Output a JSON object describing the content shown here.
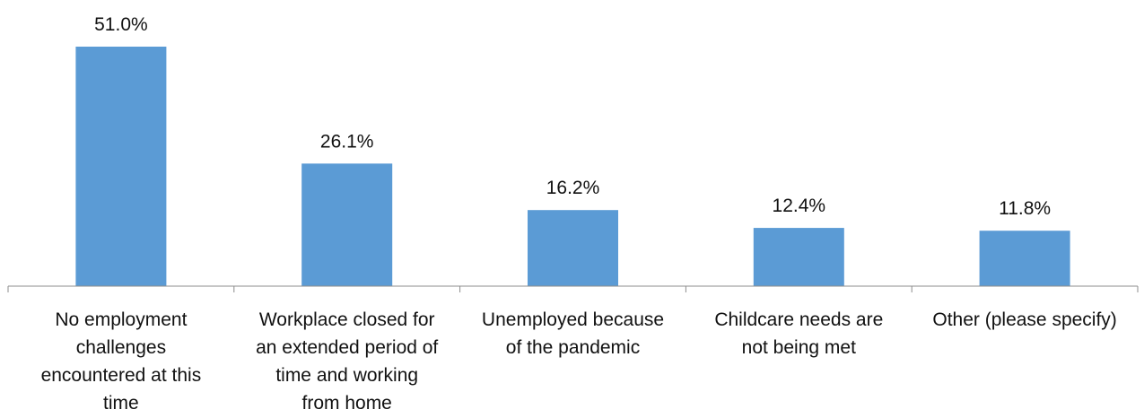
{
  "chart_data": {
    "type": "bar",
    "categories": [
      "No employment challenges encountered at this time",
      "Workplace closed for an extended period of time and working from home",
      "Unemployed because of the pandemic",
      "Childcare needs are not being met",
      "Other (please specify)"
    ],
    "category_lines": [
      [
        "No employment",
        "challenges",
        "encountered at this",
        "time"
      ],
      [
        "Workplace closed for",
        "an extended period of",
        "time and working",
        "from home"
      ],
      [
        "Unemployed because",
        "of the pandemic"
      ],
      [
        "Childcare needs are",
        "not being met"
      ],
      [
        "Other (please specify)"
      ]
    ],
    "values": [
      51.0,
      26.1,
      16.2,
      12.4,
      11.8
    ],
    "data_labels": [
      "51.0%",
      "26.1%",
      "16.2%",
      "12.4%",
      "11.8%"
    ],
    "ylim": [
      0,
      60
    ],
    "grid": false,
    "legend": "none",
    "bar_color": "#5b9bd5"
  }
}
